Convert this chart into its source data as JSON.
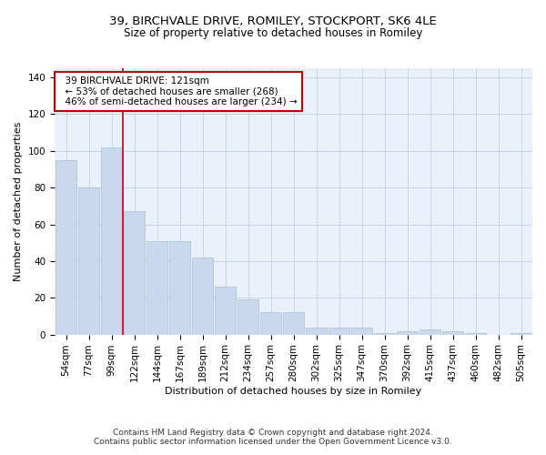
{
  "title_line1": "39, BIRCHVALE DRIVE, ROMILEY, STOCKPORT, SK6 4LE",
  "title_line2": "Size of property relative to detached houses in Romiley",
  "xlabel": "Distribution of detached houses by size in Romiley",
  "ylabel": "Number of detached properties",
  "bar_color": "#c8d9ee",
  "bar_edge_color": "#aabdd8",
  "categories": [
    "54sqm",
    "77sqm",
    "99sqm",
    "122sqm",
    "144sqm",
    "167sqm",
    "189sqm",
    "212sqm",
    "234sqm",
    "257sqm",
    "280sqm",
    "302sqm",
    "325sqm",
    "347sqm",
    "370sqm",
    "392sqm",
    "415sqm",
    "437sqm",
    "460sqm",
    "482sqm",
    "505sqm"
  ],
  "values": [
    95,
    80,
    102,
    67,
    51,
    51,
    42,
    26,
    19,
    12,
    12,
    4,
    4,
    4,
    1,
    2,
    3,
    2,
    1,
    0,
    1
  ],
  "vline_color": "#c00000",
  "annotation_text": "  39 BIRCHVALE DRIVE: 121sqm\n  ← 53% of detached houses are smaller (268)\n  46% of semi-detached houses are larger (234) →",
  "annotation_box_color": "white",
  "annotation_box_edge_color": "#c00000",
  "ylim": [
    0,
    145
  ],
  "yticks": [
    0,
    20,
    40,
    60,
    80,
    100,
    120,
    140
  ],
  "grid_color": "#c8d4e8",
  "bg_color": "#eaf0f8",
  "footnote": "Contains HM Land Registry data © Crown copyright and database right 2024.\nContains public sector information licensed under the Open Government Licence v3.0.",
  "title_fontsize": 9.5,
  "subtitle_fontsize": 8.5,
  "axis_label_fontsize": 8,
  "tick_fontsize": 7.5,
  "annotation_fontsize": 7.5,
  "footnote_fontsize": 6.5
}
